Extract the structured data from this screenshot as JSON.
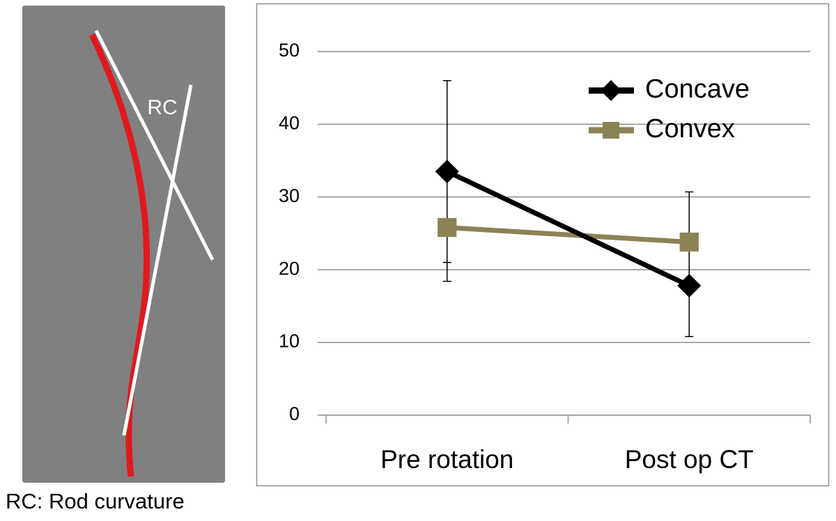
{
  "diagram": {
    "label": "RC",
    "caption": "RC: Rod curvature"
  },
  "chart_data": {
    "type": "line",
    "categories": [
      "Pre rotation",
      "Post op CT"
    ],
    "series": [
      {
        "name": "Concave",
        "color": "#000000",
        "marker": "diamond",
        "values": [
          33.5,
          17.8
        ],
        "errors": [
          12.5,
          7
        ]
      },
      {
        "name": "Convex",
        "color": "#8b8256",
        "marker": "square",
        "values": [
          25.8,
          23.8
        ],
        "errors": [
          7.4,
          6.9
        ]
      }
    ],
    "ylim": [
      0,
      50
    ],
    "yticks": [
      0,
      10,
      20,
      30,
      40,
      50
    ],
    "grid": true,
    "legend": "top-right"
  }
}
